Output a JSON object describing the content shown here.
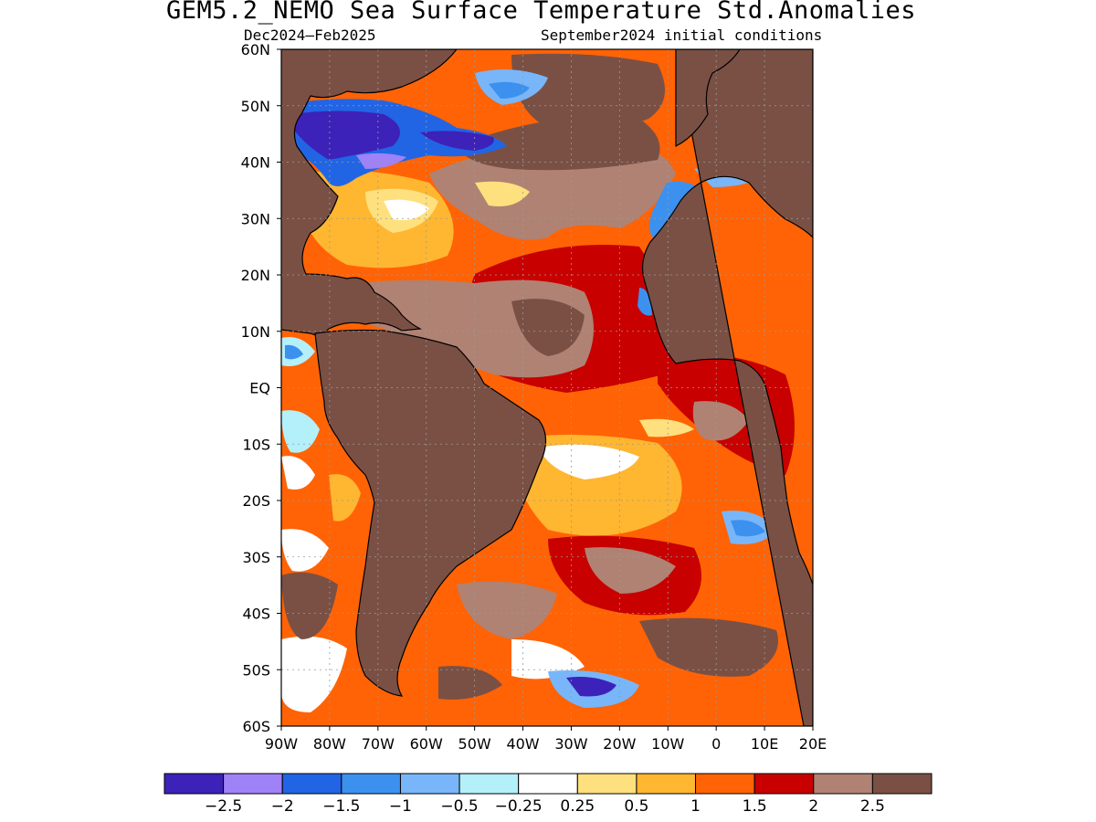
{
  "title": "GEM5.2_NEMO Sea Surface Temperature Std.Anomalies",
  "subtitle_left": "Dec2024–Feb2025",
  "subtitle_right": "September2024 initial conditions",
  "map": {
    "region": "Atlantic Ocean",
    "lon_range": [
      -90,
      20
    ],
    "lat_range": [
      -60,
      60
    ],
    "land_color": "#7a5045",
    "grid": true,
    "lat_labels": [
      "60N",
      "50N",
      "40N",
      "30N",
      "20N",
      "10N",
      "EQ",
      "10S",
      "20S",
      "30S",
      "40S",
      "50S",
      "60S"
    ],
    "lon_labels": [
      "90W",
      "80W",
      "70W",
      "60W",
      "50W",
      "40W",
      "30W",
      "20W",
      "10W",
      "0",
      "10E",
      "20E"
    ]
  },
  "colorbar": {
    "colors": [
      "#3c22b8",
      "#9f82f7",
      "#2165e5",
      "#3c91ef",
      "#78b6f9",
      "#b4f0fa",
      "#ffffff",
      "#ffe07e",
      "#ffb631",
      "#ff6305",
      "#c80000",
      "#b08273",
      "#7a5045"
    ],
    "labels": [
      "-2.5",
      "-2",
      "-1.5",
      "-1",
      "-0.5",
      "-0.25",
      "0.25",
      "0.5",
      "1",
      "1.5",
      "2",
      "2.5"
    ]
  }
}
